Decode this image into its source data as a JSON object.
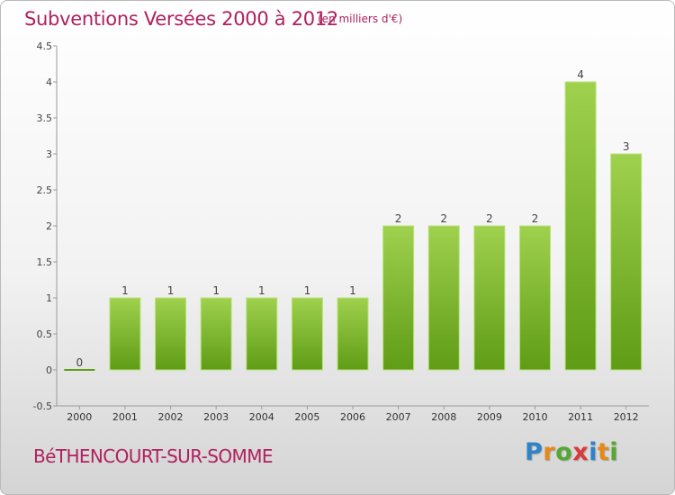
{
  "header": {
    "title": "Subventions Versées 2000 à 2012",
    "unit": "(en milliers d'€)"
  },
  "footer": {
    "place": "BéTHENCOURT-SUR-SOMME",
    "logo": "Proxiti"
  },
  "colors": {
    "title": "#b0205e",
    "bar_light": "#9fd14e",
    "bar_dark": "#5f9c16",
    "logo_letters": [
      "#2e84c7",
      "#e48a1c",
      "#54a832",
      "#d93a3a",
      "#2e84c7",
      "#e48a1c",
      "#54a832"
    ]
  },
  "chart_data": {
    "type": "bar",
    "title": "Subventions Versées 2000 à 2012",
    "unit": "(en milliers d'€)",
    "categories": [
      "2000",
      "2001",
      "2002",
      "2003",
      "2004",
      "2005",
      "2006",
      "2007",
      "2008",
      "2009",
      "2010",
      "2011",
      "2012"
    ],
    "values": [
      0,
      1,
      1,
      1,
      1,
      1,
      1,
      2,
      2,
      2,
      2,
      4,
      3
    ],
    "data_labels": [
      "0",
      "1",
      "1",
      "1",
      "1",
      "1",
      "1",
      "2",
      "2",
      "2",
      "2",
      "4",
      "3"
    ],
    "ylim": [
      -0.5,
      4.5
    ],
    "y_ticks": [
      -0.5,
      0,
      0.5,
      1,
      1.5,
      2,
      2.5,
      3,
      3.5,
      4,
      4.5
    ],
    "y_tick_labels": [
      "-0.5",
      "0",
      "0.5",
      "1",
      "1.5",
      "2",
      "2.5",
      "3",
      "3.5",
      "4",
      "4.5"
    ],
    "grid": false,
    "legend": "none"
  }
}
